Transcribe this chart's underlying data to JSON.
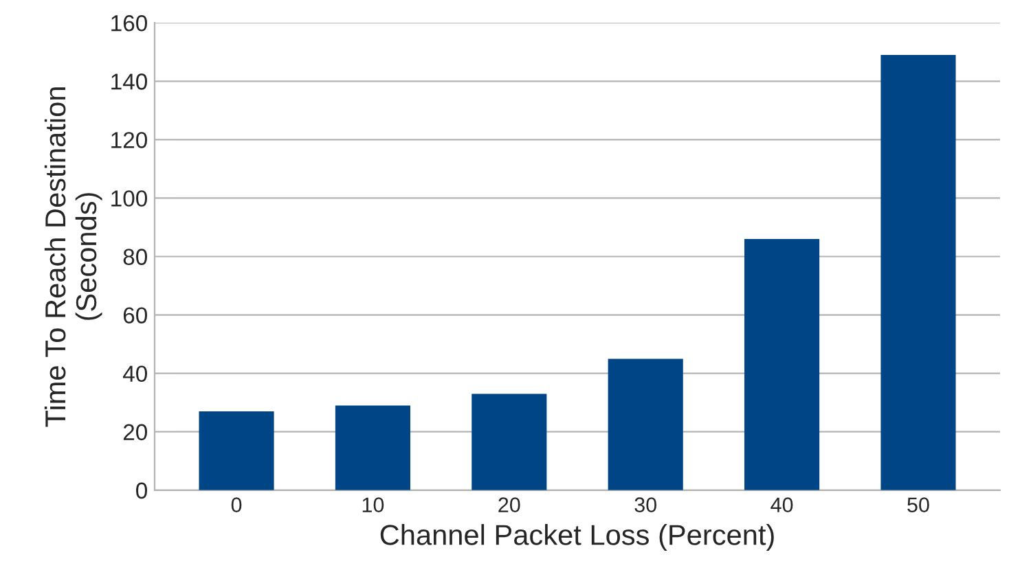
{
  "chart_data": {
    "type": "bar",
    "xlabel": "Channel Packet Loss (Percent)",
    "ylabel": "Time To Reach Destination\n(Seconds)",
    "categories": [
      "0",
      "10",
      "20",
      "30",
      "40",
      "50"
    ],
    "values": [
      27,
      29,
      33,
      45,
      86,
      149
    ],
    "color": "#004586",
    "ylim": [
      0,
      160
    ],
    "yticks": [
      0,
      20,
      40,
      60,
      80,
      100,
      120,
      140,
      160
    ],
    "grid": "y"
  }
}
